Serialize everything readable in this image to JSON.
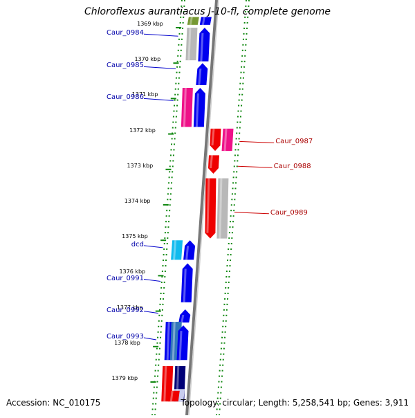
{
  "title": "Chloroflexus aurantiacus J-10-fl, complete genome",
  "footer": {
    "accession": "Accession: NC_010175",
    "summary": "Topology: circular; Length: 5,258,541 bp; Genes: 3,911"
  },
  "ticks": [
    {
      "label": "1369 kbp",
      "kbp": 1369
    },
    {
      "label": "1370 kbp",
      "kbp": 1370
    },
    {
      "label": "1371 kbp",
      "kbp": 1371
    },
    {
      "label": "1372 kbp",
      "kbp": 1372
    },
    {
      "label": "1373 kbp",
      "kbp": 1373
    },
    {
      "label": "1374 kbp",
      "kbp": 1374
    },
    {
      "label": "1375 kbp",
      "kbp": 1375
    },
    {
      "label": "1376 kbp",
      "kbp": 1376
    },
    {
      "label": "1377 kbp",
      "kbp": 1377
    },
    {
      "label": "1378 kbp",
      "kbp": 1378
    },
    {
      "label": "1379 kbp",
      "kbp": 1379
    }
  ],
  "labels": {
    "left": [
      {
        "name": "Caur_0984",
        "kbp": 1369.18
      },
      {
        "name": "Caur_0985",
        "kbp": 1370.1
      },
      {
        "name": "Caur_0986",
        "kbp": 1371.0
      },
      {
        "name": "dcd",
        "kbp": 1375.15
      },
      {
        "name": "Caur_0991",
        "kbp": 1376.1
      },
      {
        "name": "Caur_0992",
        "kbp": 1377.0
      },
      {
        "name": "Caur_0993",
        "kbp": 1377.75
      }
    ],
    "right": [
      {
        "name": "Caur_0987",
        "kbp": 1372.25
      },
      {
        "name": "Caur_0988",
        "kbp": 1372.95
      },
      {
        "name": "Caur_0989",
        "kbp": 1374.25
      }
    ]
  },
  "colors": {
    "blue": "#0000ee",
    "navy": "#000077",
    "red": "#ee0000",
    "magenta": "#ee1188",
    "gray": "#b8b8b8",
    "cyan": "#11bbee",
    "steel": "#3377bb",
    "olive": "#779933",
    "paleblue": "#c8ccee",
    "axis": "#777777",
    "grid": "#118811"
  },
  "genes": [
    {
      "track": "minus",
      "lane": 0,
      "start": 1368.7,
      "end": 1368.92,
      "color": "olive"
    },
    {
      "track": "minus",
      "lane": 1,
      "start": 1368.7,
      "end": 1368.92,
      "color": "blue"
    },
    {
      "track": "minus",
      "lane": 0,
      "start": 1369.0,
      "end": 1369.92,
      "color": "gray"
    },
    {
      "track": "minus",
      "lane": 1,
      "start": 1369.0,
      "end": 1369.95,
      "color": "blue",
      "arrow": "up"
    },
    {
      "track": "minus",
      "lane": 1,
      "start": 1370.0,
      "end": 1370.62,
      "color": "blue",
      "arrow": "up"
    },
    {
      "track": "minus",
      "lane": 0,
      "start": 1370.7,
      "end": 1371.8,
      "color": "magenta"
    },
    {
      "track": "minus",
      "lane": 1,
      "start": 1370.7,
      "end": 1371.8,
      "color": "blue",
      "arrow": "up"
    },
    {
      "track": "plus",
      "lane": 0,
      "start": 1371.85,
      "end": 1372.48,
      "color": "red",
      "arrow": "down"
    },
    {
      "track": "plus",
      "lane": 1,
      "start": 1371.85,
      "end": 1372.48,
      "color": "magenta"
    },
    {
      "track": "plus",
      "lane": 0,
      "start": 1372.6,
      "end": 1373.12,
      "color": "red",
      "arrow": "down"
    },
    {
      "track": "plus",
      "lane": 0,
      "start": 1373.25,
      "end": 1374.95,
      "color": "red",
      "arrow": "down"
    },
    {
      "track": "plus",
      "lane": 1,
      "start": 1373.25,
      "end": 1374.95,
      "color": "gray"
    },
    {
      "track": "minus",
      "lane": 0,
      "start": 1375.0,
      "end": 1375.55,
      "color": "cyan"
    },
    {
      "track": "minus",
      "lane": 1,
      "start": 1375.0,
      "end": 1375.55,
      "color": "blue",
      "arrow": "up"
    },
    {
      "track": "minus",
      "lane": 1,
      "start": 1375.65,
      "end": 1376.75,
      "color": "blue",
      "arrow": "up"
    },
    {
      "track": "minus",
      "lane": 1,
      "start": 1376.95,
      "end": 1377.32,
      "color": "blue",
      "arrow": "up"
    },
    {
      "track": "minus",
      "lane": 0,
      "start": 1377.3,
      "end": 1378.38,
      "color": "blue"
    },
    {
      "track": "minus",
      "lane": 0.45,
      "start": 1377.3,
      "end": 1378.38,
      "color": "steel"
    },
    {
      "track": "minus",
      "lane": 1,
      "start": 1377.4,
      "end": 1378.38,
      "color": "blue",
      "arrow": "up"
    },
    {
      "track": "minus",
      "lane": 0,
      "start": 1378.55,
      "end": 1379.55,
      "color": "red"
    },
    {
      "track": "minus",
      "lane": 1,
      "start": 1378.55,
      "end": 1379.55,
      "color": "navy"
    },
    {
      "track": "minus",
      "lane": 1,
      "start": 1379.2,
      "end": 1379.55,
      "color": "paleblue"
    },
    {
      "track": "minus",
      "lane": 0.6,
      "start": 1379.25,
      "end": 1379.55,
      "color": "red"
    }
  ]
}
